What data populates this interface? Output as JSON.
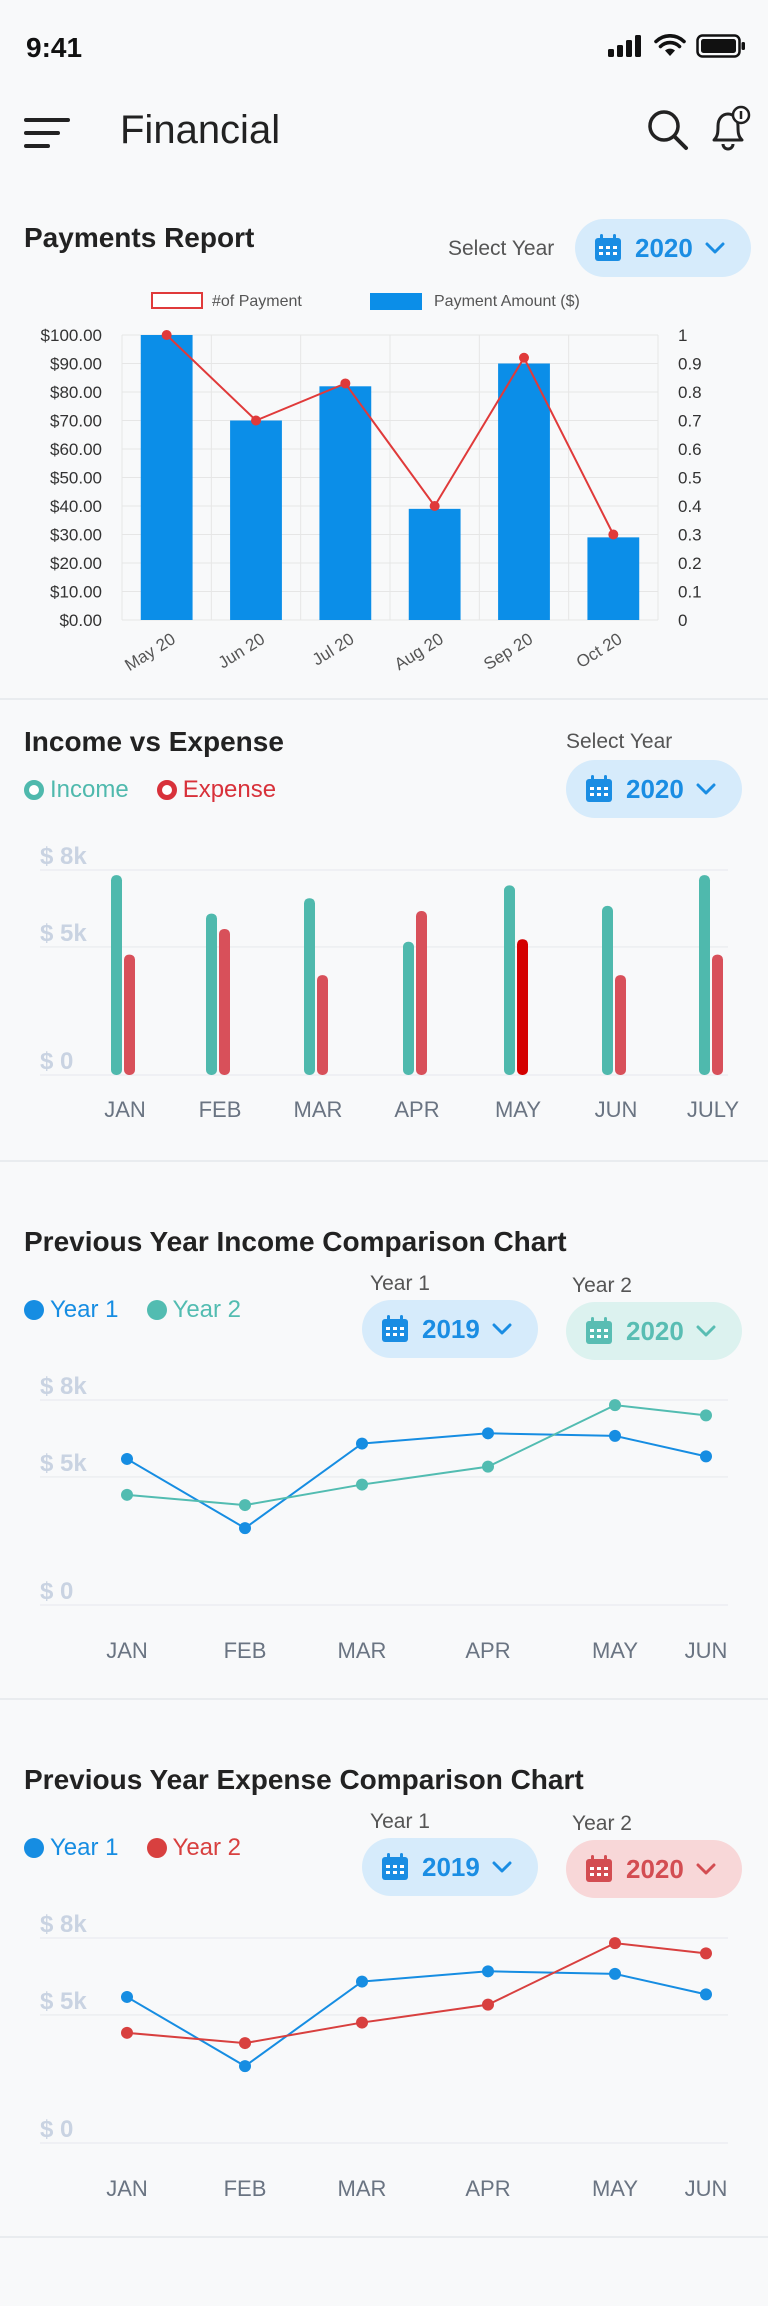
{
  "status": {
    "time": "9:41"
  },
  "header": {
    "title": "Financial"
  },
  "payments": {
    "title": "Payments Report",
    "select_year_label": "Select Year",
    "year": "2020",
    "chart_data": {
      "type": "bar",
      "categories": [
        "May 20",
        "Jun 20",
        "Jul 20",
        "Aug 20",
        "Sep 20",
        "Oct 20"
      ],
      "series": [
        {
          "name": "Payment Amount ($)",
          "type": "bar",
          "axis": "left",
          "values": [
            100,
            70,
            82,
            39,
            90,
            29
          ],
          "color": "#0b8ee8"
        },
        {
          "name": "#of Payment",
          "type": "line",
          "axis": "right",
          "values": [
            1.0,
            0.7,
            0.83,
            0.4,
            0.92,
            0.3
          ],
          "color": "#e03a3a"
        }
      ],
      "y_left_ticks": [
        "$100.00",
        "$90.00",
        "$80.00",
        "$70.00",
        "$60.00",
        "$50.00",
        "$40.00",
        "$30.00",
        "$20.00",
        "$10.00",
        "$0.00"
      ],
      "y_right_ticks": [
        "1",
        "0.9",
        "0.8",
        "0.7",
        "0.6",
        "0.5",
        "0.4",
        "0.3",
        "0.2",
        "0.1",
        "0"
      ],
      "ylim_left": [
        0,
        100
      ],
      "ylim_right": [
        0,
        1
      ],
      "grid": true,
      "legend_position": "top"
    }
  },
  "income_expense": {
    "title": "Income vs Expense",
    "select_year_label": "Select Year",
    "year": "2020",
    "legend": [
      {
        "label": "Income",
        "color": "#4fb9ad"
      },
      {
        "label": "Expense",
        "color": "#d8313a"
      }
    ],
    "chart_data": {
      "type": "bar",
      "categories": [
        "JAN",
        "FEB",
        "MAR",
        "APR",
        "MAY",
        "JUN",
        "JULY"
      ],
      "series": [
        {
          "name": "Income",
          "values": [
            7800,
            6300,
            6900,
            5200,
            7400,
            6600,
            7800
          ],
          "color": "#4fb9ad"
        },
        {
          "name": "Expense",
          "values": [
            4700,
            5700,
            3900,
            6400,
            5300,
            3900,
            4700
          ],
          "color": "#d8505a",
          "highlight_color": "#d40000",
          "highlight_index": 4
        }
      ],
      "y_ticks": [
        "$ 8k",
        "$ 5k",
        "$ 0"
      ],
      "ylim": [
        0,
        8000
      ],
      "grid": true
    }
  },
  "income_comparison": {
    "title": "Previous Year Income Comparison Chart",
    "year1_label": "Year 1",
    "year2_label": "Year 2",
    "year1": "2019",
    "year2": "2020",
    "legend": [
      {
        "label": "Year 1",
        "color": "#168de2"
      },
      {
        "label": "Year 2",
        "color": "#52bcb1"
      }
    ],
    "chart_data": {
      "type": "line",
      "categories": [
        "JAN",
        "FEB",
        "MAR",
        "APR",
        "MAY",
        "JUN"
      ],
      "series": [
        {
          "name": "Year 1",
          "values": [
            5700,
            3000,
            6300,
            6700,
            6600,
            5800
          ],
          "color": "#168de2"
        },
        {
          "name": "Year 2",
          "values": [
            4300,
            3900,
            4700,
            5400,
            7800,
            7400
          ],
          "color": "#52bcb1"
        }
      ],
      "y_ticks": [
        "$ 8k",
        "$ 5k",
        "$ 0"
      ],
      "ylim": [
        0,
        8000
      ],
      "grid": true
    }
  },
  "expense_comparison": {
    "title": "Previous Year Expense Comparison Chart",
    "year1_label": "Year 1",
    "year2_label": "Year 2",
    "year1": "2019",
    "year2": "2020",
    "legend": [
      {
        "label": "Year 1",
        "color": "#168de2"
      },
      {
        "label": "Year 2",
        "color": "#d8403f"
      }
    ],
    "chart_data": {
      "type": "line",
      "categories": [
        "JAN",
        "FEB",
        "MAR",
        "APR",
        "MAY",
        "JUN"
      ],
      "series": [
        {
          "name": "Year 1",
          "values": [
            5700,
            3000,
            6300,
            6700,
            6600,
            5800
          ],
          "color": "#168de2"
        },
        {
          "name": "Year 2",
          "values": [
            4300,
            3900,
            4700,
            5400,
            7800,
            7400
          ],
          "color": "#d8403f"
        }
      ],
      "y_ticks": [
        "$ 8k",
        "$ 5k",
        "$ 0"
      ],
      "ylim": [
        0,
        8000
      ],
      "grid": true
    }
  }
}
